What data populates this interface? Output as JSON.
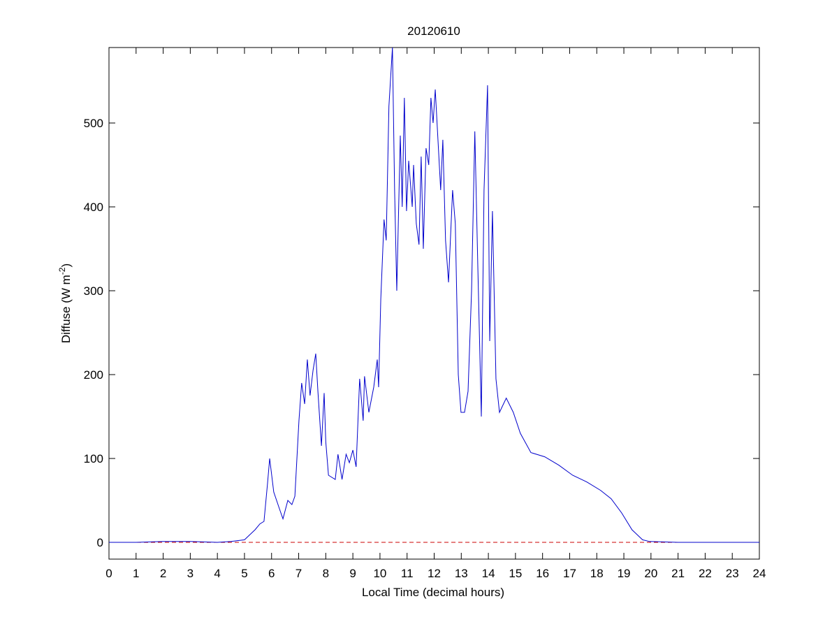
{
  "chart_data": {
    "type": "line",
    "title": "20120610",
    "xlabel": "Local Time (decimal hours)",
    "ylabel": {
      "text": "Diffuse (W m",
      "superscript": "-2",
      "suffix": ")"
    },
    "x": [
      0,
      1,
      2,
      3,
      4,
      4.5,
      4.74,
      5.0,
      5.39,
      5.57,
      5.72,
      5.85,
      5.93,
      6.08,
      6.29,
      6.42,
      6.6,
      6.75,
      6.86,
      7.01,
      7.11,
      7.22,
      7.32,
      7.42,
      7.53,
      7.63,
      7.71,
      7.84,
      7.94,
      8.0,
      8.1,
      8.35,
      8.45,
      8.6,
      8.75,
      8.87,
      9.0,
      9.12,
      9.25,
      9.38,
      9.43,
      9.59,
      9.77,
      9.9,
      9.95,
      10.03,
      10.15,
      10.23,
      10.33,
      10.46,
      10.54,
      10.62,
      10.75,
      10.82,
      10.9,
      10.98,
      11.06,
      11.19,
      11.24,
      11.34,
      11.44,
      11.52,
      11.6,
      11.7,
      11.8,
      11.88,
      11.96,
      12.04,
      12.14,
      12.24,
      12.32,
      12.42,
      12.53,
      12.68,
      12.78,
      12.89,
      12.99,
      13.12,
      13.25,
      13.38,
      13.5,
      13.61,
      13.74,
      13.84,
      13.97,
      14.05,
      14.15,
      14.28,
      14.41,
      14.66,
      14.92,
      15.18,
      15.57,
      16.08,
      16.6,
      17.11,
      17.63,
      18.14,
      18.53,
      18.92,
      19.3,
      19.69,
      19.95,
      21,
      22,
      23,
      24
    ],
    "series": [
      {
        "color": "#0000cc",
        "values": [
          0,
          0,
          1,
          1,
          0,
          1,
          2,
          3,
          15,
          22,
          25,
          70,
          100,
          60,
          40,
          28,
          50,
          45,
          55,
          145,
          190,
          165,
          218,
          175,
          205,
          225,
          180,
          115,
          178,
          120,
          80,
          75,
          105,
          75,
          105,
          95,
          110,
          90,
          195,
          145,
          198,
          155,
          185,
          218,
          185,
          290,
          385,
          360,
          520,
          590,
          420,
          300,
          485,
          400,
          530,
          395,
          455,
          400,
          450,
          380,
          355,
          460,
          350,
          470,
          450,
          530,
          500,
          540,
          480,
          420,
          480,
          360,
          310,
          420,
          380,
          200,
          155,
          155,
          180,
          300,
          490,
          330,
          150,
          420,
          545,
          240,
          395,
          195,
          155,
          172,
          155,
          130,
          107,
          102,
          92,
          80,
          72,
          62,
          52,
          35,
          15,
          3,
          1,
          0,
          0,
          0,
          0
        ]
      }
    ],
    "reference_line": {
      "y": 0,
      "color": "#cc0000"
    },
    "xlim": [
      0,
      24
    ],
    "xticks": [
      0,
      1,
      2,
      3,
      4,
      5,
      6,
      7,
      8,
      9,
      10,
      11,
      12,
      13,
      14,
      15,
      16,
      17,
      18,
      19,
      20,
      21,
      22,
      23,
      24
    ],
    "ylim": [
      -20,
      590
    ],
    "yticks": [
      0,
      100,
      200,
      300,
      400,
      500
    ],
    "grid": false
  }
}
